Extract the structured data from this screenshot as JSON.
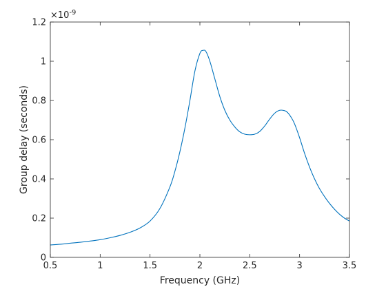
{
  "chart_data": {
    "type": "line",
    "xlabel": "Frequency (GHz)",
    "ylabel": "Group delay (seconds)",
    "y_exponent_label": "×10",
    "y_exponent_power": "-9",
    "xlim": [
      0.5,
      3.5
    ],
    "ylim": [
      0,
      1.2
    ],
    "x_ticks": [
      0.5,
      1,
      1.5,
      2,
      2.5,
      3,
      3.5
    ],
    "x_tick_labels": [
      "0.5",
      "1",
      "1.5",
      "2",
      "2.5",
      "3",
      "3.5"
    ],
    "y_ticks": [
      0,
      0.2,
      0.4,
      0.6,
      0.8,
      1,
      1.2
    ],
    "y_tick_labels": [
      "0",
      "0.2",
      "0.4",
      "0.6",
      "0.8",
      "1",
      "1.2"
    ],
    "grid": false,
    "line_color": "#0072BD",
    "series": [
      {
        "x": [
          0.5,
          0.6,
          0.7,
          0.8,
          0.9,
          1.0,
          1.1,
          1.2,
          1.3,
          1.4,
          1.5,
          1.6,
          1.7,
          1.75,
          1.8,
          1.85,
          1.9,
          1.95,
          2.0,
          2.03,
          2.06,
          2.1,
          2.15,
          2.2,
          2.25,
          2.3,
          2.35,
          2.4,
          2.45,
          2.5,
          2.55,
          2.6,
          2.65,
          2.7,
          2.75,
          2.8,
          2.85,
          2.88,
          2.92,
          2.95,
          3.0,
          3.05,
          3.1,
          3.15,
          3.2,
          3.25,
          3.3,
          3.35,
          3.4,
          3.45,
          3.5
        ],
        "values": [
          0.063,
          0.067,
          0.072,
          0.077,
          0.083,
          0.09,
          0.1,
          0.112,
          0.128,
          0.15,
          0.185,
          0.25,
          0.36,
          0.44,
          0.54,
          0.66,
          0.8,
          0.95,
          1.04,
          1.055,
          1.05,
          1.0,
          0.91,
          0.82,
          0.75,
          0.7,
          0.665,
          0.64,
          0.628,
          0.625,
          0.628,
          0.642,
          0.67,
          0.705,
          0.735,
          0.75,
          0.748,
          0.738,
          0.71,
          0.68,
          0.61,
          0.53,
          0.46,
          0.4,
          0.35,
          0.31,
          0.275,
          0.245,
          0.22,
          0.2,
          0.185
        ]
      }
    ]
  }
}
